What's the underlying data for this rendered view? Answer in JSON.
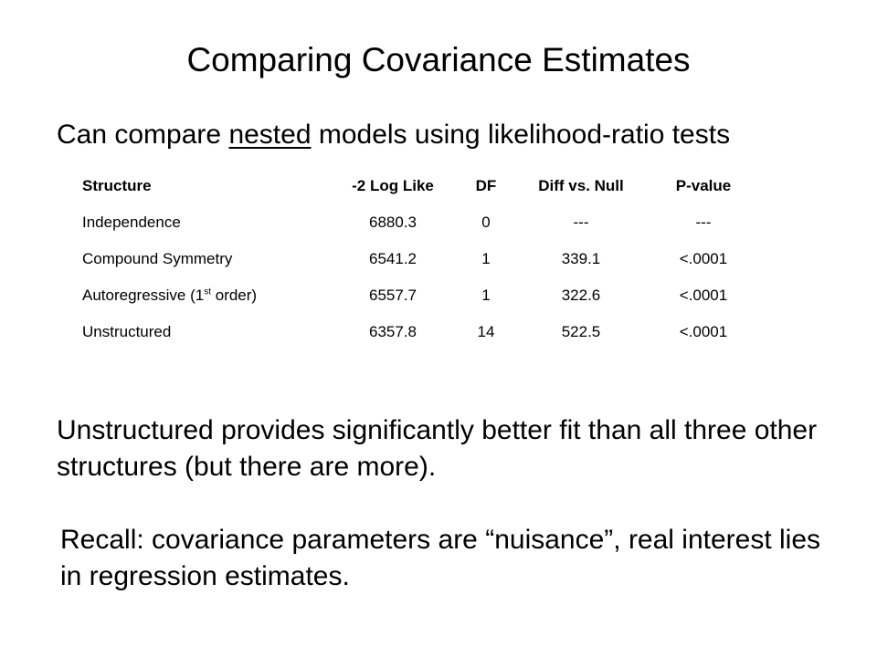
{
  "slide": {
    "title": "Comparing Covariance Estimates",
    "subtitle": {
      "before": "Can compare ",
      "underlined": "nested",
      "after": " models using likelihood-ratio tests"
    },
    "table": {
      "headers": {
        "structure": "Structure",
        "loglike": "-2 Log Like",
        "df": "DF",
        "diff": "Diff vs. Null",
        "pvalue": "P-value"
      },
      "rows": [
        {
          "structure": "Independence",
          "structure_sup": "",
          "structure_suffix": "",
          "loglike": "6880.3",
          "df": "0",
          "diff": "---",
          "pvalue": "---"
        },
        {
          "structure": "Compound Symmetry",
          "structure_sup": "",
          "structure_suffix": "",
          "loglike": "6541.2",
          "df": "1",
          "diff": "339.1",
          "pvalue": "<.0001"
        },
        {
          "structure": "Autoregressive (1",
          "structure_sup": "st",
          "structure_suffix": " order)",
          "loglike": "6557.7",
          "df": "1",
          "diff": "322.6",
          "pvalue": "<.0001"
        },
        {
          "structure": "Unstructured",
          "structure_sup": "",
          "structure_suffix": "",
          "loglike": "6357.8",
          "df": "14",
          "diff": "522.5",
          "pvalue": "<.0001"
        }
      ]
    },
    "paragraph1": "Unstructured provides significantly better fit than all three other structures (but there are more).",
    "paragraph2": "Recall: covariance parameters are “nuisance”, real interest lies in regression estimates."
  }
}
